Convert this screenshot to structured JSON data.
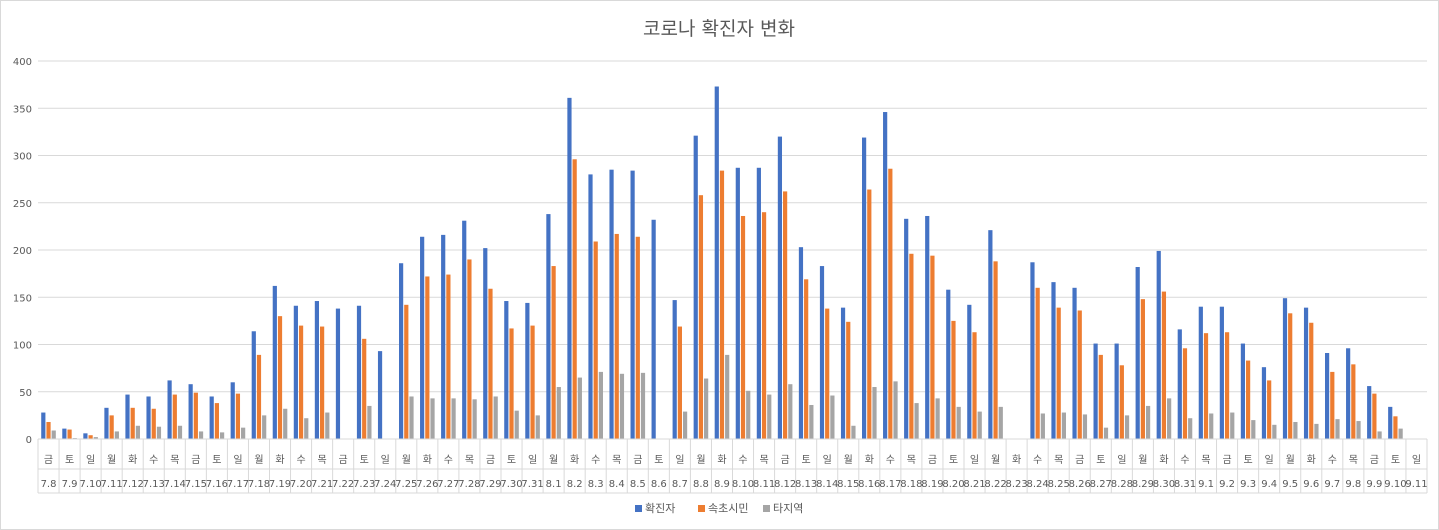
{
  "chart_data": {
    "type": "bar",
    "title": "코로나 확진자 변화",
    "xlabel": "",
    "ylabel": "",
    "ylim": [
      0,
      400
    ],
    "yticks": [
      0,
      50,
      100,
      150,
      200,
      250,
      300,
      350,
      400
    ],
    "grid": true,
    "legend_position": "bottom",
    "colors": {
      "확진자": "#4472c4",
      "속초시민": "#ed7d31",
      "타지역": "#a5a5a5",
      "grid": "#d9d9d9",
      "text": "#595959"
    },
    "weekdays": [
      "금",
      "토",
      "일",
      "월",
      "화",
      "수",
      "목",
      "금",
      "토",
      "일",
      "월",
      "화",
      "수",
      "목",
      "금",
      "토",
      "일",
      "월",
      "화",
      "수",
      "목",
      "금",
      "토",
      "일",
      "월",
      "화",
      "수",
      "목",
      "금",
      "토",
      "일",
      "월",
      "화",
      "수",
      "목",
      "금",
      "토",
      "일",
      "월",
      "화",
      "수",
      "목",
      "금",
      "토",
      "일",
      "월",
      "화",
      "수",
      "목",
      "금",
      "토",
      "일",
      "월",
      "화",
      "수",
      "목",
      "금",
      "토",
      "일",
      "월",
      "화",
      "수",
      "목",
      "금",
      "토",
      "일"
    ],
    "categories": [
      "7.8",
      "7.9",
      "7.10",
      "7.11",
      "7.12",
      "7.13",
      "7.14",
      "7.15",
      "7.16",
      "7.17",
      "7.18",
      "7.19",
      "7.20",
      "7.21",
      "7.22",
      "7.23",
      "7.24",
      "7.25",
      "7.26",
      "7.27",
      "7.28",
      "7.29",
      "7.30",
      "7.31",
      "8.1",
      "8.2",
      "8.3",
      "8.4",
      "8.5",
      "8.6",
      "8.7",
      "8.8",
      "8.9",
      "8.10",
      "8.11",
      "8.12",
      "8.13",
      "8.14",
      "8.15",
      "8.16",
      "8.17",
      "8.18",
      "8.19",
      "8.20",
      "8.21",
      "8.22",
      "8.23",
      "8.24",
      "8.25",
      "8.26",
      "8.27",
      "8.28",
      "8.29",
      "8.30",
      "8.31",
      "9.1",
      "9.2",
      "9.3",
      "9.4",
      "9.5",
      "9.6",
      "9.7",
      "9.8",
      "9.9",
      "9.10",
      "9.11"
    ],
    "series": [
      {
        "name": "확진자",
        "values": [
          28,
          11,
          6,
          33,
          47,
          45,
          62,
          58,
          45,
          60,
          114,
          162,
          141,
          146,
          138,
          141,
          93,
          186,
          214,
          216,
          231,
          202,
          146,
          144,
          238,
          361,
          280,
          285,
          284,
          232,
          147,
          321,
          373,
          287,
          287,
          320,
          203,
          183,
          139,
          319,
          346,
          233,
          236,
          158,
          142,
          221,
          0,
          187,
          166,
          160,
          101,
          101,
          182,
          199,
          116,
          140,
          140,
          101,
          76,
          149,
          139,
          91,
          96,
          56,
          34,
          0
        ]
      },
      {
        "name": "속초시민",
        "values": [
          18,
          10,
          4,
          25,
          33,
          32,
          47,
          49,
          38,
          48,
          89,
          130,
          120,
          119,
          0,
          106,
          0,
          142,
          172,
          174,
          190,
          159,
          117,
          120,
          183,
          296,
          209,
          217,
          214,
          0,
          119,
          258,
          284,
          236,
          240,
          262,
          169,
          138,
          124,
          264,
          286,
          196,
          194,
          125,
          113,
          188,
          0,
          160,
          139,
          136,
          89,
          78,
          148,
          156,
          96,
          112,
          113,
          83,
          62,
          133,
          123,
          71,
          79,
          48,
          24,
          0
        ]
      },
      {
        "name": "타지역",
        "values": [
          9,
          1,
          2,
          8,
          14,
          13,
          14,
          8,
          7,
          12,
          25,
          32,
          22,
          28,
          0,
          35,
          0,
          45,
          43,
          43,
          42,
          45,
          30,
          25,
          55,
          65,
          71,
          69,
          70,
          0,
          29,
          64,
          89,
          51,
          47,
          58,
          36,
          46,
          14,
          55,
          61,
          38,
          43,
          34,
          29,
          34,
          0,
          27,
          28,
          26,
          12,
          25,
          35,
          43,
          22,
          27,
          28,
          20,
          15,
          18,
          16,
          21,
          19,
          8,
          11,
          0
        ]
      }
    ]
  }
}
